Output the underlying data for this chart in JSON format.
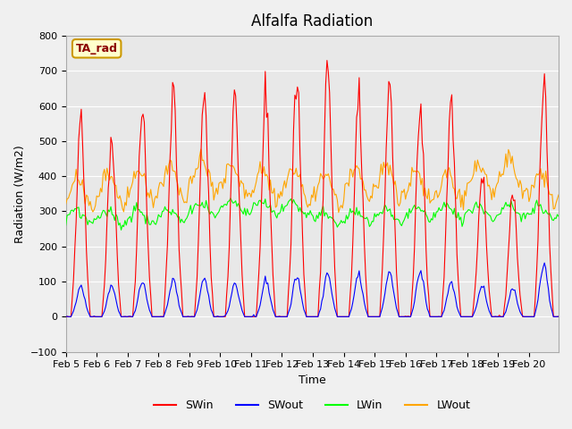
{
  "title": "Alfalfa Radiation",
  "xlabel": "Time",
  "ylabel": "Radiation (W/m2)",
  "ylim": [
    -100,
    800
  ],
  "background_color": "#e8e8e8",
  "fig_background": "#f0f0f0",
  "legend_labels": [
    "SWin",
    "SWout",
    "LWin",
    "LWout"
  ],
  "legend_colors": [
    "red",
    "blue",
    "lime",
    "orange"
  ],
  "annotation_text": "TA_rad",
  "annotation_bg": "#ffffcc",
  "annotation_border": "#cc9900",
  "tick_labels": [
    "Feb 5",
    "Feb 6",
    "Feb 7",
    "Feb 8",
    "Feb 9",
    "Feb 10",
    "Feb 11",
    "Feb 12",
    "Feb 13",
    "Feb 14",
    "Feb 15",
    "Feb 16",
    "Feb 17",
    "Feb 18",
    "Feb 19",
    "Feb 20"
  ],
  "day_peaks_swin": [
    590,
    510,
    600,
    640,
    640,
    640,
    635,
    680,
    730,
    625,
    680,
    600,
    600,
    410,
    350,
    700
  ],
  "day_peaks_swout": [
    90,
    90,
    100,
    105,
    110,
    95,
    105,
    115,
    125,
    120,
    130,
    130,
    95,
    90,
    80,
    155
  ],
  "lwin_base_vals": [
    280,
    275,
    280,
    285,
    300,
    305,
    305,
    300,
    275,
    275,
    280,
    285,
    290,
    295,
    295,
    290
  ],
  "lwout_base_vals": [
    330,
    340,
    350,
    360,
    380,
    370,
    350,
    350,
    340,
    360,
    365,
    350,
    345,
    370,
    380,
    345
  ],
  "yticks": [
    -100,
    0,
    100,
    200,
    300,
    400,
    500,
    600,
    700,
    800
  ]
}
